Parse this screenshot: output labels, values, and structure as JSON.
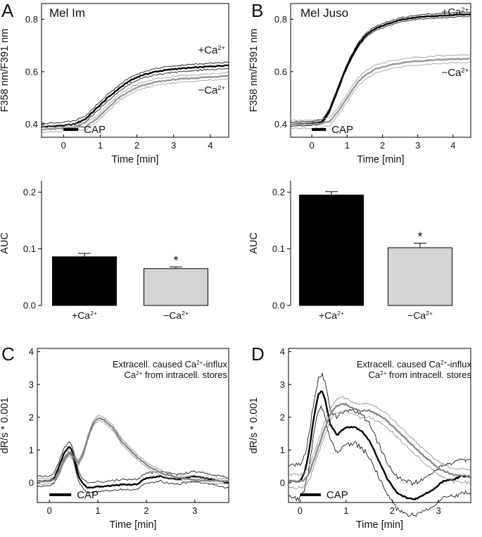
{
  "chart_data": [
    {
      "panel": "A",
      "type": "line",
      "title": "Mel Im",
      "xlabel": "Time [min]",
      "ylabel": "F358 nm/F391 nm",
      "xlim": [
        -0.6,
        4.5
      ],
      "ylim": [
        0.35,
        0.86
      ],
      "xticks": [
        0,
        1,
        2,
        3,
        4
      ],
      "yticks": [
        0.4,
        0.6,
        0.8
      ],
      "ytick_labels": [
        "0.4",
        "0.6",
        "0.8"
      ],
      "stim_label": "CAP",
      "stim_range": [
        0,
        0.4
      ],
      "series": [
        {
          "name": "+Ca2+",
          "label_main": "+Ca",
          "label_sup": "2+",
          "color": "#000000",
          "x": [
            -0.6,
            0,
            0.3,
            0.6,
            0.9,
            1.2,
            1.5,
            1.8,
            2.1,
            2.5,
            3,
            3.5,
            4,
            4.5
          ],
          "y": [
            0.39,
            0.395,
            0.4,
            0.42,
            0.46,
            0.5,
            0.535,
            0.565,
            0.585,
            0.6,
            0.61,
            0.615,
            0.62,
            0.625
          ],
          "err": 0.012
        },
        {
          "name": "-Ca2+",
          "label_main": "−Ca",
          "label_sup": "2+",
          "color": "#999999",
          "x": [
            -0.6,
            0,
            0.3,
            0.6,
            0.9,
            1.2,
            1.5,
            1.8,
            2.1,
            2.5,
            3,
            3.5,
            4,
            4.5
          ],
          "y": [
            0.38,
            0.385,
            0.39,
            0.39,
            0.42,
            0.46,
            0.5,
            0.525,
            0.545,
            0.56,
            0.57,
            0.575,
            0.58,
            0.585
          ],
          "err": 0.012
        }
      ]
    },
    {
      "panel": "B",
      "type": "line",
      "title": "Mel Juso",
      "xlabel": "Time [min]",
      "ylabel": "F358 nm/F391 nm",
      "xlim": [
        -0.6,
        4.5
      ],
      "ylim": [
        0.35,
        0.86
      ],
      "xticks": [
        0,
        1,
        2,
        3,
        4
      ],
      "yticks": [
        0.4,
        0.6,
        0.8
      ],
      "ytick_labels": [
        "0.4",
        "0.6",
        "0.8"
      ],
      "stim_label": "CAP",
      "stim_range": [
        0,
        0.4
      ],
      "series": [
        {
          "name": "+Ca2+",
          "label_main": "+Ca",
          "label_sup": "2+",
          "color": "#000000",
          "x": [
            -0.6,
            0,
            0.3,
            0.5,
            0.7,
            0.9,
            1.1,
            1.3,
            1.5,
            1.8,
            2.2,
            2.6,
            3,
            3.5,
            4,
            4.5
          ],
          "y": [
            0.4,
            0.402,
            0.41,
            0.45,
            0.52,
            0.59,
            0.65,
            0.7,
            0.735,
            0.765,
            0.785,
            0.8,
            0.808,
            0.812,
            0.816,
            0.82
          ],
          "err": 0.008
        },
        {
          "name": "-Ca2+",
          "label_main": "−Ca",
          "label_sup": "2+",
          "color": "#999999",
          "x": [
            -0.6,
            0,
            0.3,
            0.5,
            0.7,
            0.9,
            1.1,
            1.3,
            1.5,
            1.8,
            2.2,
            2.6,
            3,
            3.5,
            4,
            4.5
          ],
          "y": [
            0.4,
            0.4,
            0.403,
            0.41,
            0.44,
            0.48,
            0.52,
            0.56,
            0.585,
            0.61,
            0.625,
            0.635,
            0.64,
            0.645,
            0.648,
            0.65
          ],
          "err": 0.015
        }
      ]
    },
    {
      "panel": "A",
      "type": "bar",
      "ylabel": "AUC",
      "ylim": [
        0,
        0.22
      ],
      "yticks": [
        0,
        0.1,
        0.2
      ],
      "ytick_labels": [
        "0.0",
        "0.1",
        "0.2"
      ],
      "categories": [
        {
          "main": "+Ca",
          "sup": "2+"
        },
        {
          "main": "−Ca",
          "sup": "2+"
        }
      ],
      "values": [
        0.086,
        0.065
      ],
      "errors": [
        0.006,
        0.003
      ],
      "colors": [
        "#000000",
        "#d4d4d4"
      ],
      "significance": [
        "",
        "*"
      ]
    },
    {
      "panel": "B",
      "type": "bar",
      "ylabel": "AUC",
      "ylim": [
        0,
        0.22
      ],
      "yticks": [
        0,
        0.1,
        0.2
      ],
      "ytick_labels": [
        "0.0",
        "0.1",
        "0.2"
      ],
      "categories": [
        {
          "main": "+Ca",
          "sup": "2+"
        },
        {
          "main": "−Ca",
          "sup": "2+"
        }
      ],
      "values": [
        0.195,
        0.102
      ],
      "errors": [
        0.006,
        0.008
      ],
      "colors": [
        "#000000",
        "#d4d4d4"
      ],
      "significance": [
        "",
        "*"
      ]
    },
    {
      "panel": "C",
      "type": "line",
      "xlabel": "Time [min]",
      "ylabel": "dR/s * 0.001",
      "xlim": [
        -0.25,
        3.7
      ],
      "ylim": [
        -0.6,
        4.1
      ],
      "xticks": [
        0,
        1,
        2,
        3
      ],
      "yticks": [
        0,
        1,
        2,
        3,
        4
      ],
      "ytick_labels": [
        "0",
        "1",
        "2",
        "3",
        "4"
      ],
      "stim_label": "CAP",
      "stim_range": [
        0,
        0.45
      ],
      "legend": [
        {
          "pre": "Extracell. caused Ca",
          "sup": "2+",
          "post": "-influx",
          "color": "#000000"
        },
        {
          "pre": "Ca",
          "sup": "2+",
          "post": " from intracell. stores",
          "color": "#888888"
        }
      ],
      "series": [
        {
          "name": "Extracell. caused Ca2+-influx",
          "color": "#000000",
          "x": [
            -0.25,
            0,
            0.1,
            0.2,
            0.3,
            0.4,
            0.45,
            0.5,
            0.6,
            0.7,
            0.8,
            1.0,
            1.2,
            1.5,
            1.8,
            2.0,
            2.3,
            2.6,
            3.0,
            3.3,
            3.7
          ],
          "y": [
            0.05,
            0.05,
            0.15,
            0.5,
            0.9,
            1.1,
            1.05,
            0.8,
            0.2,
            -0.05,
            -0.15,
            -0.12,
            -0.1,
            -0.05,
            -0.05,
            0.15,
            0.2,
            0.1,
            0.2,
            0.12,
            0.0
          ],
          "err": 0.15
        },
        {
          "name": "Ca2+ from intracell. stores",
          "color": "#888888",
          "x": [
            -0.25,
            0,
            0.1,
            0.2,
            0.3,
            0.4,
            0.5,
            0.6,
            0.7,
            0.8,
            0.9,
            1.0,
            1.1,
            1.3,
            1.5,
            1.8,
            2.1,
            2.4,
            2.8,
            3.2,
            3.7
          ],
          "y": [
            0.05,
            0.05,
            0.1,
            0.3,
            0.7,
            0.9,
            0.8,
            0.6,
            0.9,
            1.4,
            1.8,
            1.97,
            1.95,
            1.7,
            1.25,
            0.8,
            0.45,
            0.25,
            0.12,
            0.07,
            0.05
          ],
          "err": 0.08
        }
      ]
    },
    {
      "panel": "D",
      "type": "line",
      "xlabel": "Time [min]",
      "ylabel": "dR/s * 0.001",
      "xlim": [
        -0.25,
        3.7
      ],
      "ylim": [
        -0.6,
        4.1
      ],
      "xticks": [
        0,
        1,
        2,
        3
      ],
      "yticks": [
        0,
        1,
        2,
        3,
        4
      ],
      "ytick_labels": [
        "0",
        "1",
        "2",
        "3",
        "4"
      ],
      "stim_label": "CAP",
      "stim_range": [
        0,
        0.45
      ],
      "legend": [
        {
          "pre": "Extracell. caused Ca",
          "sup": "2+",
          "post": "-influx",
          "color": "#000000"
        },
        {
          "pre": "Ca",
          "sup": "2+",
          "post": " from intracell. stores",
          "color": "#888888"
        }
      ],
      "series": [
        {
          "name": "Extracell. caused Ca2+-influx",
          "color": "#000000",
          "x": [
            -0.25,
            0,
            0.1,
            0.2,
            0.3,
            0.4,
            0.47,
            0.55,
            0.65,
            0.8,
            0.95,
            1.05,
            1.2,
            1.35,
            1.5,
            1.7,
            1.9,
            2.1,
            2.3,
            2.5,
            2.7,
            2.9,
            3.1,
            3.3,
            3.5,
            3.7
          ],
          "y": [
            0.05,
            0.05,
            0.3,
            1.0,
            2.0,
            2.7,
            2.82,
            2.5,
            1.8,
            1.45,
            1.65,
            1.7,
            1.7,
            1.55,
            1.3,
            0.7,
            0.1,
            -0.3,
            -0.45,
            -0.5,
            -0.35,
            -0.2,
            0.05,
            0.1,
            0.2,
            0.2
          ],
          "err": 0.5
        },
        {
          "name": "Ca2+ from intracell. stores",
          "color": "#888888",
          "x": [
            -0.25,
            0,
            0.1,
            0.2,
            0.3,
            0.4,
            0.5,
            0.6,
            0.7,
            0.8,
            0.9,
            1.0,
            1.1,
            1.3,
            1.5,
            1.8,
            2.1,
            2.4,
            2.7,
            3.0,
            3.3,
            3.7
          ],
          "y": [
            0.05,
            0.05,
            0.1,
            0.3,
            0.7,
            1.1,
            1.5,
            1.9,
            2.2,
            2.35,
            2.4,
            2.4,
            2.3,
            2.2,
            2.2,
            2.0,
            1.6,
            1.2,
            0.8,
            0.45,
            0.25,
            0.2
          ],
          "err": 0.2
        }
      ]
    }
  ]
}
